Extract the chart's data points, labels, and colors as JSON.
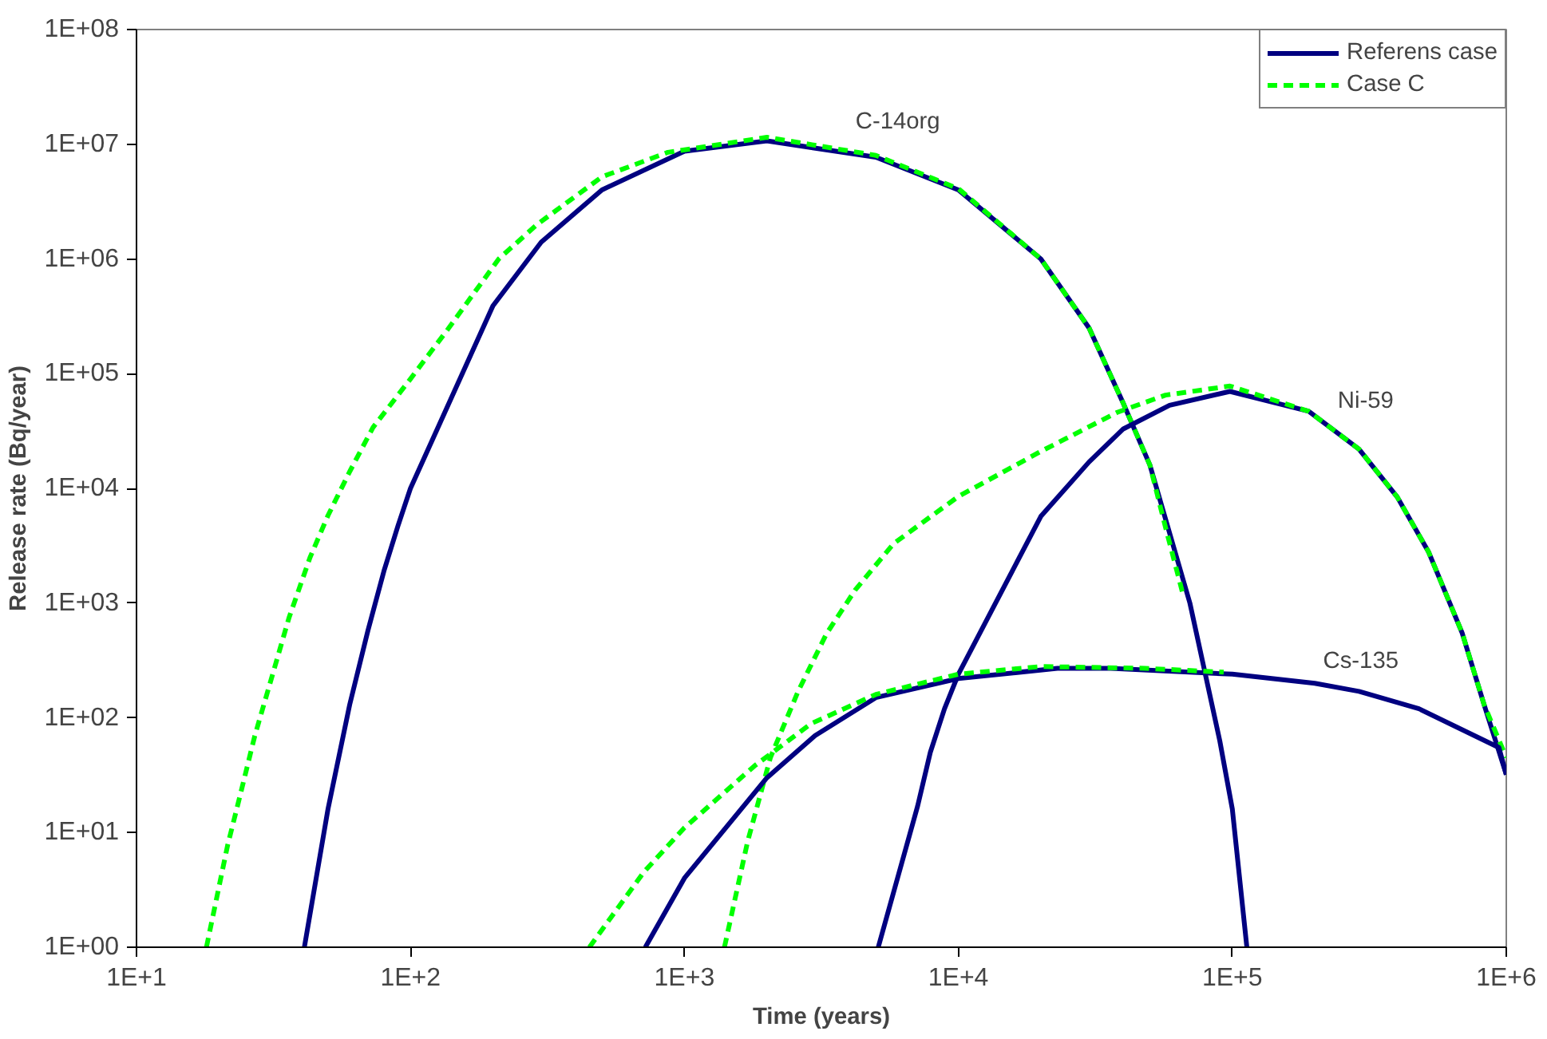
{
  "chart_data": {
    "type": "line",
    "xlabel": "Time (years)",
    "ylabel": "Release rate (Bq/year)",
    "log": "xy",
    "grid": false,
    "legend": "top right",
    "marker": "none",
    "xlim": [
      10,
      1000000
    ],
    "xticks": [
      {
        "value": 10,
        "label": "1E+1"
      },
      {
        "value": 100,
        "label": "1E+2"
      },
      {
        "value": 1000,
        "label": "1E+3"
      },
      {
        "value": 10000,
        "label": "1E+4"
      },
      {
        "value": 100000,
        "label": "1E+5"
      },
      {
        "value": 1000000,
        "label": "1E+6"
      }
    ],
    "ylim": [
      1,
      100000000
    ],
    "yticks": [
      {
        "value": 1,
        "label": "1E+00"
      },
      {
        "value": 10,
        "label": "1E+01"
      },
      {
        "value": 100,
        "label": "1E+02"
      },
      {
        "value": 1000,
        "label": "1E+03"
      },
      {
        "value": 10000,
        "label": "1E+04"
      },
      {
        "value": 100000,
        "label": "1E+05"
      },
      {
        "value": 1000000,
        "label": "1E+06"
      },
      {
        "value": 10000000,
        "label": "1E+07"
      },
      {
        "value": 100000000,
        "label": "1E+08"
      }
    ],
    "series": [
      {
        "name": "Referens case",
        "color": "#000080",
        "line_style": "solid",
        "x": [
          41,
          50,
          60,
          70,
          80,
          90,
          100,
          200,
          300,
          500,
          1000,
          2000,
          5000,
          10000,
          20000,
          30000,
          40000,
          50000,
          70000,
          90000,
          100000,
          113000
        ],
        "values": [
          1,
          16,
          130,
          580,
          1900,
          4700,
          10000,
          390000,
          1400000,
          4000000,
          8700000,
          10700000,
          7700000,
          4000000,
          1000000,
          250000,
          55000,
          16000,
          1000,
          63,
          16,
          1
        ]
      },
      {
        "name": "Case C",
        "color": "#00ff00",
        "line_style": "dashed",
        "x": [
          18,
          21.5,
          24,
          27,
          32,
          36,
          43,
          50,
          60,
          73,
          100,
          138,
          210,
          290,
          500,
          870,
          2000,
          5000,
          10000,
          20000,
          30000,
          40000,
          50000,
          57000,
          66000
        ],
        "values": [
          1,
          7.7,
          22,
          69,
          280,
          740,
          2500,
          5800,
          14000,
          34000,
          90000,
          250000,
          1000000,
          2000000,
          5200000,
          8500000,
          11500000,
          8000000,
          4100000,
          1000000,
          250000,
          55000,
          16000,
          4600,
          1200
        ]
      },
      {
        "color": "#000080",
        "line_style": "solid",
        "x": [
          5100,
          7100,
          7900,
          8900,
          10000,
          20000,
          30000,
          40000,
          59000,
          98000,
          190000,
          290000,
          400000,
          520000,
          690000,
          830000,
          1000000
        ],
        "values": [
          1,
          17,
          50,
          120,
          240,
          5700,
          17000,
          33000,
          53000,
          70000,
          47000,
          22000,
          8400,
          2800,
          550,
          130,
          32
        ]
      },
      {
        "color": "#00ff00",
        "line_style": "dashed",
        "x": [
          1400,
          1700,
          2060,
          2600,
          3300,
          4200,
          5800,
          10000,
          20000,
          38000,
          57000,
          98000,
          190000,
          290000,
          400000,
          520000,
          690000,
          830000,
          1000000
        ],
        "values": [
          1,
          8.3,
          45,
          170,
          540,
          1300,
          3300,
          8500,
          21000,
          46000,
          65000,
          78000,
          47000,
          22000,
          8400,
          2800,
          550,
          130,
          45
        ]
      },
      {
        "color": "#000080",
        "line_style": "solid",
        "x": [
          720,
          1000,
          2000,
          3000,
          5000,
          10000,
          23000,
          36000,
          100000,
          200000,
          290000,
          480000,
          940000,
          1000000
        ],
        "values": [
          1,
          4,
          30,
          70,
          150,
          220,
          270,
          270,
          240,
          200,
          170,
          120,
          55,
          32
        ]
      },
      {
        "color": "#00ff00",
        "line_style": "dashed",
        "x": [
          450,
          710,
          1000,
          1800,
          2900,
          5000,
          10000,
          20000,
          48000,
          93000
        ],
        "values": [
          1,
          4.5,
          11,
          38,
          89,
          160,
          240,
          280,
          270,
          250
        ]
      }
    ],
    "annotations": [
      "C-14org",
      "Ni-59",
      "Cs-135"
    ]
  }
}
